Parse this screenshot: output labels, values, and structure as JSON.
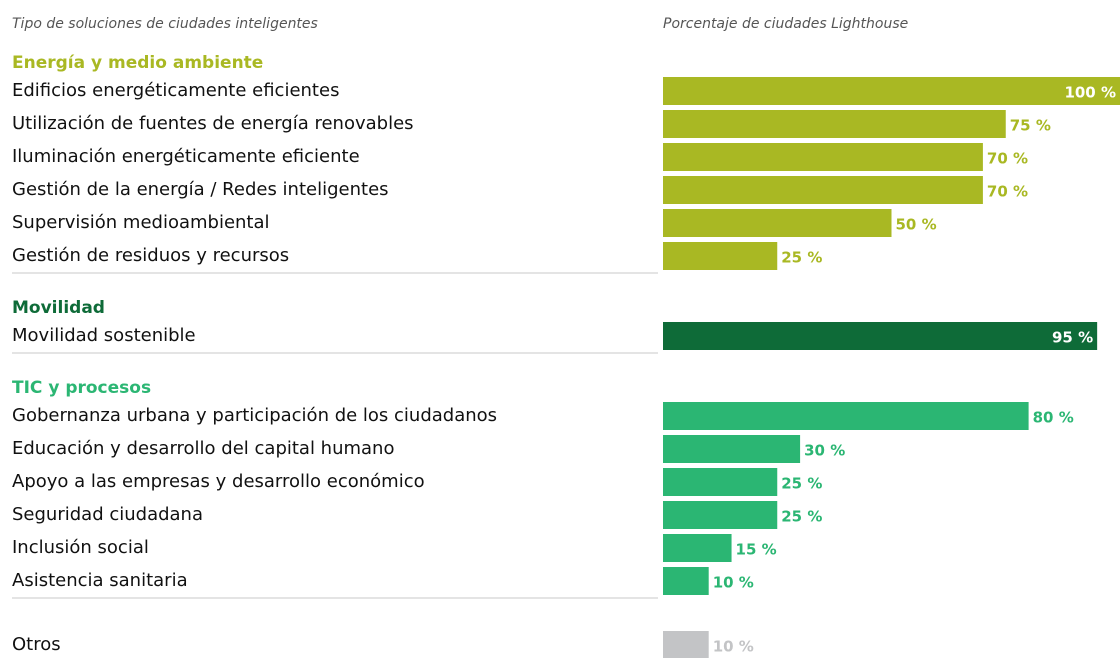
{
  "chart_data": {
    "type": "bar",
    "y_label": "Tipo de soluciones de ciudades inteligentes",
    "x_label": "Porcentaje de ciudades Lighthouse",
    "xlim": [
      0,
      100
    ],
    "groups": [
      {
        "name": "Energía y medio ambiente",
        "color": "#a9b823",
        "categories": [
          "Edificios energéticamente eficientes",
          "Utilización de fuentes de energía renovables",
          "Iluminación energéticamente eficiente",
          "Gestión de la energía / Redes inteligentes",
          "Supervisión medioambiental",
          "Gestión de residuos y recursos"
        ],
        "values": [
          100,
          75,
          70,
          70,
          50,
          25
        ],
        "value_labels": [
          "100 %",
          "75 %",
          "70 %",
          "70 %",
          "50 %",
          "25 %"
        ]
      },
      {
        "name": "Movilidad",
        "color": "#0e6b38",
        "categories": [
          "Movilidad sostenible"
        ],
        "values": [
          95
        ],
        "value_labels": [
          "95 %"
        ]
      },
      {
        "name": "TIC y procesos",
        "color": "#2bb673",
        "categories": [
          "Gobernanza urbana y participación de los ciudadanos",
          "Educación y desarrollo del capital humano",
          "Apoyo a las empresas y desarrollo económico",
          "Seguridad ciudadana",
          "Inclusión social",
          "Asistencia sanitaria"
        ],
        "values": [
          80,
          30,
          25,
          25,
          15,
          10
        ],
        "value_labels": [
          "80 %",
          "30 %",
          "25 %",
          "25 %",
          "15 %",
          "10 %"
        ]
      },
      {
        "color": "#c3c4c6",
        "categories": [
          "Otros"
        ],
        "values": [
          10
        ],
        "value_labels": [
          "10 %"
        ]
      }
    ]
  }
}
